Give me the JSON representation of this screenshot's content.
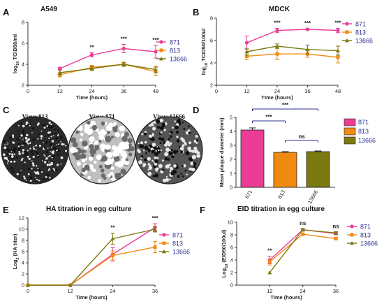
{
  "colors": {
    "871": "#ec3c96",
    "813": "#f08a10",
    "13666": "#7a7a10"
  },
  "panels": {
    "A": {
      "label": "A",
      "title": "A549",
      "chart_data": {
        "type": "line",
        "title": "A549",
        "xlabel": "Time (hours)",
        "ylabel": "log10 TCID50/ml",
        "x": [
          12,
          24,
          36,
          48
        ],
        "xticks": [
          0,
          12,
          24,
          36,
          48
        ],
        "xlim": [
          0,
          48
        ],
        "ylim": [
          2,
          8
        ],
        "yticks": [
          2,
          4,
          6,
          8
        ],
        "series": [
          {
            "name": "871",
            "values": [
              3.6,
              4.9,
              5.5,
              5.2
            ],
            "err": [
              0.1,
              0.2,
              0.4,
              0.6
            ]
          },
          {
            "name": "813",
            "values": [
              3.0,
              3.7,
              4.0,
              3.3
            ],
            "err": [
              0.2,
              0.2,
              0.2,
              0.4
            ]
          },
          {
            "name": "13666",
            "values": [
              3.2,
              3.6,
              4.0,
              3.5
            ],
            "err": [
              0.2,
              0.2,
              0.2,
              0.3
            ]
          }
        ],
        "annotations": [
          {
            "x": 24,
            "text": "**"
          },
          {
            "x": 36,
            "text": "***"
          },
          {
            "x": 48,
            "text": "***"
          }
        ],
        "legend": "right"
      }
    },
    "B": {
      "label": "B",
      "title": "MDCK",
      "chart_data": {
        "type": "line",
        "title": "MDCK",
        "xlabel": "TIme (hours)",
        "ylabel": "log10 TCID50/100ul",
        "x": [
          12,
          24,
          36,
          48
        ],
        "xticks": [
          0,
          12,
          24,
          36,
          48
        ],
        "xlim": [
          0,
          48
        ],
        "ylim": [
          2,
          8
        ],
        "yticks": [
          2,
          4,
          6,
          8
        ],
        "series": [
          {
            "name": "871",
            "values": [
              5.8,
              6.9,
              7.0,
              6.9
            ],
            "err": [
              0.6,
              0.2,
              0.05,
              0.2
            ]
          },
          {
            "name": "813",
            "values": [
              4.6,
              4.8,
              4.8,
              4.5
            ],
            "err": [
              0.3,
              0.5,
              0.3,
              0.5
            ]
          },
          {
            "name": "13666",
            "values": [
              5.0,
              5.5,
              5.2,
              5.1
            ],
            "err": [
              0.3,
              0.2,
              0.4,
              0.4
            ]
          }
        ],
        "annotations": [
          {
            "x": 24,
            "text": "***"
          },
          {
            "x": 36,
            "text": "***"
          },
          {
            "x": 48,
            "text": "***"
          }
        ],
        "legend": "right"
      }
    },
    "C": {
      "label": "C",
      "plaques": [
        {
          "caption": "Virus 813",
          "density": "dense-small"
        },
        {
          "caption": "Virus 871",
          "density": "large"
        },
        {
          "caption": "Virus 13666",
          "density": "medium"
        }
      ]
    },
    "D": {
      "label": "D",
      "chart_data": {
        "type": "bar",
        "ylabel": "Mean plaque diameter (mm)",
        "categories": [
          "871",
          "813",
          "13666"
        ],
        "values": [
          4.1,
          2.5,
          2.55
        ],
        "err": [
          0.15,
          0.05,
          0.05
        ],
        "ylim": [
          0,
          5
        ],
        "yticks": [
          0,
          1,
          2,
          3,
          4,
          5
        ],
        "comparisons": [
          {
            "from": "871",
            "to": "813",
            "text": "***"
          },
          {
            "from": "813",
            "to": "13666",
            "text": "ns"
          },
          {
            "from": "871",
            "to": "13666",
            "text": "***"
          }
        ],
        "legend": "right"
      }
    },
    "E": {
      "label": "E",
      "title": "HA titration in egg culture",
      "chart_data": {
        "type": "line",
        "title": "HA titration in egg culture",
        "xlabel": "Time (hours)",
        "ylabel": "Log2 (HA titer)",
        "x": [
          0,
          12,
          24,
          36
        ],
        "xticks": [
          0,
          12,
          24,
          36
        ],
        "xlim": [
          0,
          36
        ],
        "ylim": [
          0,
          12
        ],
        "yticks": [
          0,
          2,
          4,
          6,
          8,
          10,
          12
        ],
        "series": [
          {
            "name": "871",
            "values": [
              0,
              0,
              5.5,
              10.3
            ],
            "err": [
              0,
              0,
              1.2,
              0.7
            ]
          },
          {
            "name": "813",
            "values": [
              0,
              0,
              5.3,
              6.8
            ],
            "err": [
              0,
              0,
              0.8,
              1.0
            ]
          },
          {
            "name": "13666",
            "values": [
              0,
              0,
              8.3,
              10.0
            ],
            "err": [
              0,
              0,
              1.0,
              0.5
            ]
          }
        ],
        "annotations": [
          {
            "x": 24,
            "text": "**"
          },
          {
            "x": 36,
            "text": "***"
          }
        ],
        "legend": "right"
      }
    },
    "F": {
      "label": "F",
      "title": "EID titration in egg culture",
      "chart_data": {
        "type": "line",
        "title": "EID titration in egg culture",
        "xlabel": "Time (hours)",
        "ylabel": "Log10 (EID50/100ul)",
        "x": [
          12,
          24,
          36
        ],
        "xticks": [
          12,
          24,
          36
        ],
        "xlim": [
          0,
          36
        ],
        "ylim": [
          0,
          10
        ],
        "yticks": [
          0,
          2,
          4,
          6,
          8,
          10
        ],
        "series": [
          {
            "name": "871",
            "values": [
              4.0,
              8.8,
              8.2
            ],
            "err": [
              0.6,
              0.2,
              0.2
            ]
          },
          {
            "name": "813",
            "values": [
              3.7,
              8.1,
              7.4
            ],
            "err": [
              0.5,
              0.2,
              0.2
            ]
          },
          {
            "name": "13666",
            "values": [
              2.0,
              8.8,
              8.3
            ],
            "err": [
              0.0,
              0.2,
              0.2
            ]
          }
        ],
        "annotations": [
          {
            "x": 12,
            "text": "**"
          },
          {
            "x": 24,
            "text": "ns"
          },
          {
            "x": 36,
            "text": "ns"
          }
        ],
        "legend": "right"
      }
    }
  }
}
